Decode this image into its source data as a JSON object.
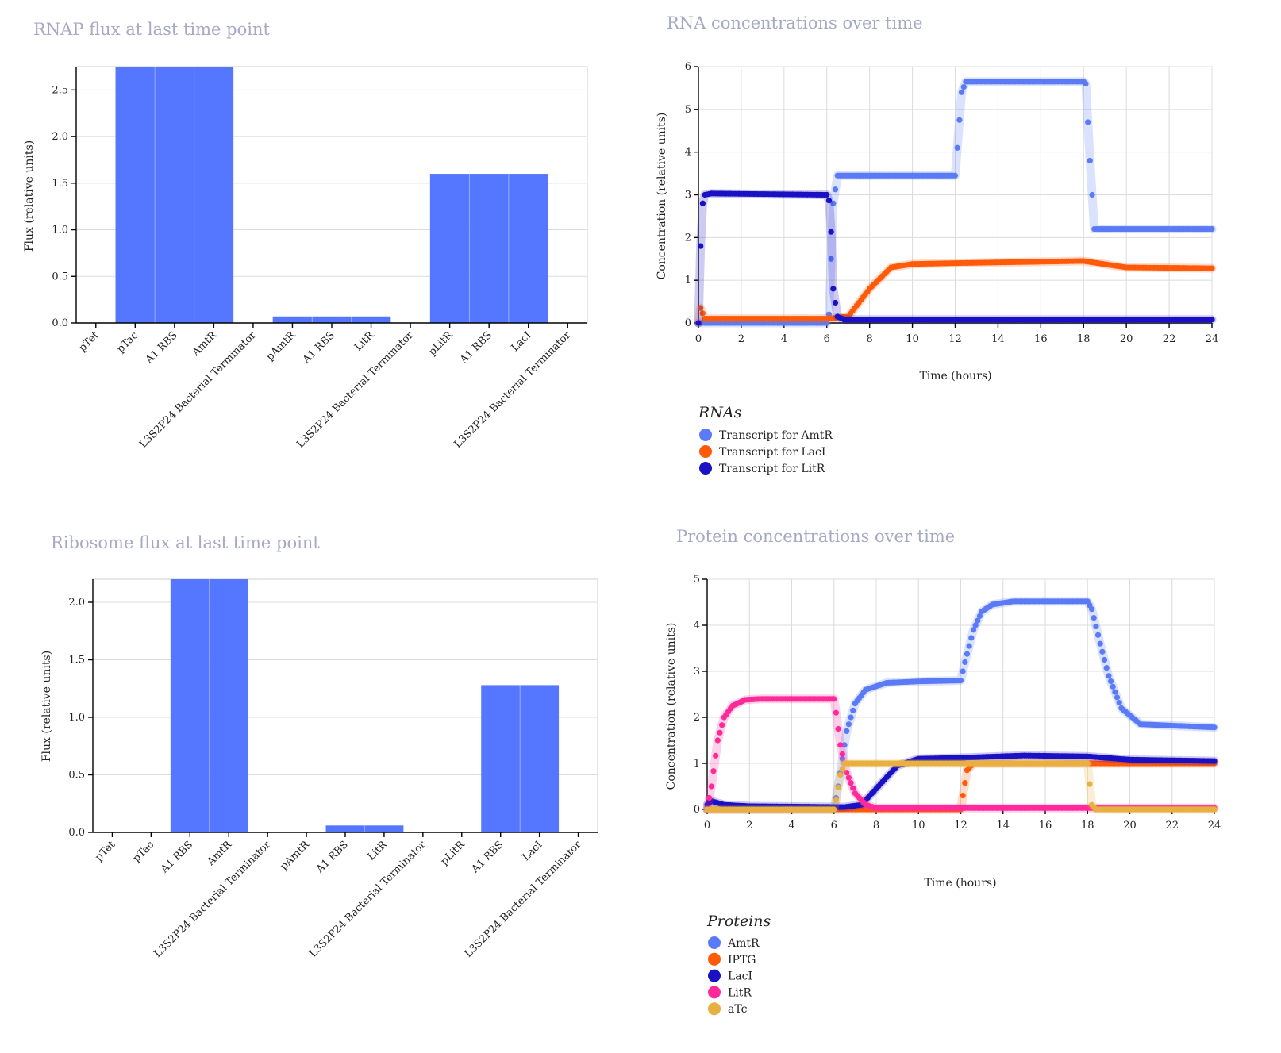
{
  "colors": {
    "bar": "#5577ff",
    "amtr": "#5a7bf5",
    "laci_rna": "#ff5a0a",
    "litr_rna": "#1a10c4",
    "iptg": "#ff5a0a",
    "laci_protein": "#1a10c4",
    "litr_protein": "#ff2a9a",
    "atc": "#e8b040"
  },
  "chart_data": [
    {
      "id": "rnap",
      "type": "bar",
      "title": "RNAP flux at last time point",
      "xlabel": "",
      "ylabel": "Flux (relative units)",
      "ylim": [
        0,
        2.75
      ],
      "yticks": [
        "0.0",
        "0.5",
        "1.0",
        "1.5",
        "2.0",
        "2.5"
      ],
      "grid": true,
      "categories": [
        "pTet",
        "pTac",
        "A1 RBS",
        "AmtR",
        "L3S2P24 Bacterial Terminator",
        "pAmtR",
        "A1 RBS",
        "LitR",
        "L3S2P24 Bacterial Terminator",
        "pLitR",
        "A1 RBS",
        "LacI",
        "L3S2P24 Bacterial Terminator"
      ],
      "values": [
        0,
        2.75,
        2.75,
        2.75,
        0,
        0.07,
        0.07,
        0.07,
        0,
        1.6,
        1.6,
        1.6,
        0
      ]
    },
    {
      "id": "rna",
      "type": "scatter",
      "title": "RNA concentrations over time",
      "xlabel": "Time (hours)",
      "ylabel": "Concentration (relative units)",
      "xlim": [
        0,
        24
      ],
      "ylim": [
        0,
        6
      ],
      "xticks": [
        "0",
        "2",
        "4",
        "6",
        "8",
        "10",
        "12",
        "14",
        "16",
        "18",
        "20",
        "22",
        "24"
      ],
      "yticks": [
        "0",
        "1",
        "2",
        "3",
        "4",
        "5",
        "6"
      ],
      "grid": true,
      "legend": {
        "title": "RNAs",
        "position": "bottom-left",
        "items": [
          "Transcript for AmtR",
          "Transcript for LacI",
          "Transcript for LitR"
        ]
      },
      "series": [
        {
          "name": "Transcript for AmtR",
          "color_key": "amtr",
          "x": [
            0,
            6,
            6.1,
            6.3,
            6.5,
            12,
            12.1,
            12.3,
            12.5,
            18,
            18.1,
            18.3,
            18.5,
            24
          ],
          "y": [
            0,
            0,
            0.2,
            2.8,
            3.45,
            3.45,
            4.1,
            5.4,
            5.65,
            5.65,
            5.6,
            3.8,
            2.2,
            2.2
          ]
        },
        {
          "name": "Transcript for LacI",
          "color_key": "laci_rna",
          "x": [
            0,
            0.1,
            0.3,
            6,
            7,
            8,
            9,
            10,
            12,
            18,
            20,
            24
          ],
          "y": [
            0,
            0.35,
            0.1,
            0.1,
            0.15,
            0.8,
            1.3,
            1.38,
            1.4,
            1.45,
            1.3,
            1.28
          ]
        },
        {
          "name": "Transcript for LitR",
          "color_key": "litr_rna",
          "x": [
            0,
            0.15,
            0.3,
            0.6,
            6,
            6.15,
            6.3,
            6.5,
            6.8,
            24
          ],
          "y": [
            0,
            2.7,
            3.0,
            3.03,
            3.0,
            2.8,
            0.8,
            0.15,
            0.08,
            0.08
          ]
        }
      ]
    },
    {
      "id": "ribo",
      "type": "bar",
      "title": "Ribosome flux at last time point",
      "xlabel": "",
      "ylabel": "Flux (relative units)",
      "ylim": [
        0,
        2.2
      ],
      "yticks": [
        "0.0",
        "0.5",
        "1.0",
        "1.5",
        "2.0"
      ],
      "grid": true,
      "categories": [
        "pTet",
        "pTac",
        "A1 RBS",
        "AmtR",
        "L3S2P24 Bacterial Terminator",
        "pAmtR",
        "A1 RBS",
        "LitR",
        "L3S2P24 Bacterial Terminator",
        "pLitR",
        "A1 RBS",
        "LacI",
        "L3S2P24 Bacterial Terminator"
      ],
      "values": [
        0,
        0,
        2.2,
        2.2,
        0,
        0,
        0.06,
        0.06,
        0,
        0,
        1.28,
        1.28,
        0
      ]
    },
    {
      "id": "prot",
      "type": "scatter",
      "title": "Protein concentrations over time",
      "xlabel": "Time (hours)",
      "ylabel": "Concentration (relative units)",
      "xlim": [
        0,
        24
      ],
      "ylim": [
        0,
        5
      ],
      "xticks": [
        "0",
        "2",
        "4",
        "6",
        "8",
        "10",
        "12",
        "14",
        "16",
        "18",
        "20",
        "22",
        "24"
      ],
      "yticks": [
        "0",
        "1",
        "2",
        "3",
        "4",
        "5"
      ],
      "grid": true,
      "legend": {
        "title": "Proteins",
        "position": "bottom-left",
        "items": [
          "AmtR",
          "IPTG",
          "LacI",
          "LitR",
          "aTc"
        ]
      },
      "series": [
        {
          "name": "AmtR",
          "color_key": "amtr",
          "x": [
            0,
            6,
            6.2,
            6.6,
            7,
            7.5,
            8.5,
            10,
            12,
            12.2,
            12.6,
            13,
            13.5,
            14.5,
            18,
            18.2,
            18.6,
            19,
            19.6,
            20.5,
            24
          ],
          "y": [
            0,
            0,
            0.5,
            1.7,
            2.3,
            2.6,
            2.75,
            2.78,
            2.8,
            3.2,
            3.9,
            4.3,
            4.45,
            4.52,
            4.52,
            4.35,
            3.6,
            2.9,
            2.2,
            1.85,
            1.78
          ]
        },
        {
          "name": "IPTG",
          "color_key": "iptg",
          "x": [
            0,
            12,
            12.1,
            12.3,
            12.6,
            24
          ],
          "y": [
            0,
            0,
            0.3,
            0.85,
            1.0,
            1.0
          ]
        },
        {
          "name": "LacI",
          "color_key": "laci_protein",
          "x": [
            0,
            0.2,
            0.8,
            2,
            6.5,
            7.3,
            8,
            9,
            10,
            12,
            15,
            18,
            20,
            24
          ],
          "y": [
            0.1,
            0.18,
            0.1,
            0.07,
            0.05,
            0.1,
            0.45,
            0.95,
            1.1,
            1.12,
            1.17,
            1.15,
            1.08,
            1.05
          ]
        },
        {
          "name": "LitR",
          "color_key": "litr_protein",
          "x": [
            0,
            0.2,
            0.5,
            0.8,
            1.2,
            1.8,
            2.5,
            6,
            6.1,
            6.3,
            6.6,
            7,
            7.5,
            8,
            24
          ],
          "y": [
            0,
            0.5,
            1.5,
            2.0,
            2.25,
            2.38,
            2.4,
            2.4,
            2.1,
            1.4,
            0.8,
            0.35,
            0.1,
            0.03,
            0.03
          ]
        },
        {
          "name": "aTc",
          "color_key": "atc",
          "x": [
            0,
            6,
            6.1,
            6.3,
            6.5,
            18,
            18.1,
            18.2,
            18.4,
            24
          ],
          "y": [
            0,
            0,
            0.2,
            0.75,
            1.0,
            1.0,
            0.55,
            0.1,
            0,
            0
          ]
        }
      ]
    }
  ]
}
